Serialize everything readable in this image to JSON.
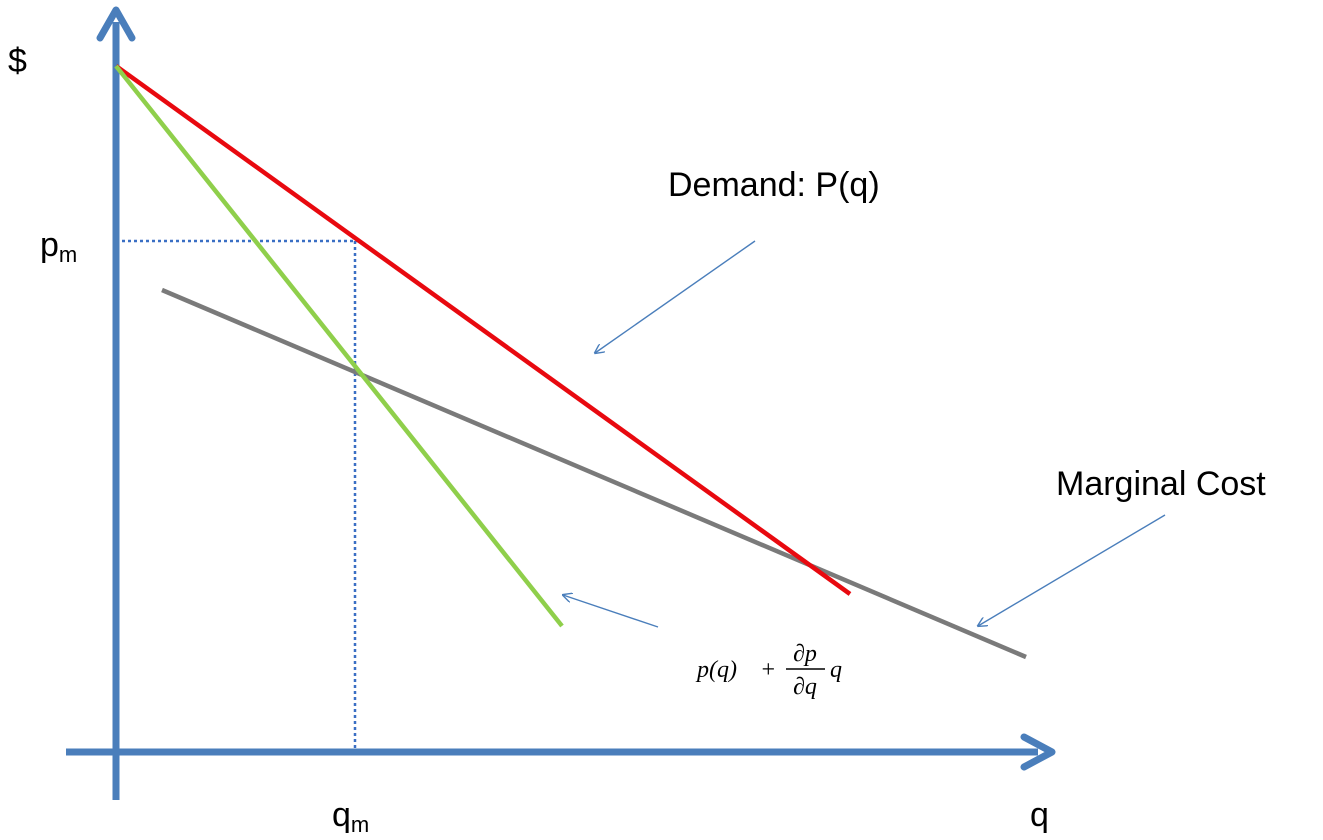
{
  "labels": {
    "y_axis": "$",
    "x_axis": "q",
    "price_monopoly": "p",
    "price_monopoly_sub": "m",
    "quantity_monopoly": "q",
    "quantity_monopoly_sub": "m",
    "demand": "Demand: P(q)",
    "marginal_cost": "Marginal Cost"
  },
  "formula": {
    "lhs": "p(q)",
    "plus": "+",
    "numerator": "∂p",
    "denominator": "∂q",
    "tail": "q"
  },
  "colors": {
    "axis": "#4a7ebb",
    "demand": "#e8090f",
    "marginal_revenue": "#8fcf4b",
    "marginal_cost": "#7a7a7a",
    "guide": "#3a6fc4",
    "pointer": "#4a7ebb"
  }
}
